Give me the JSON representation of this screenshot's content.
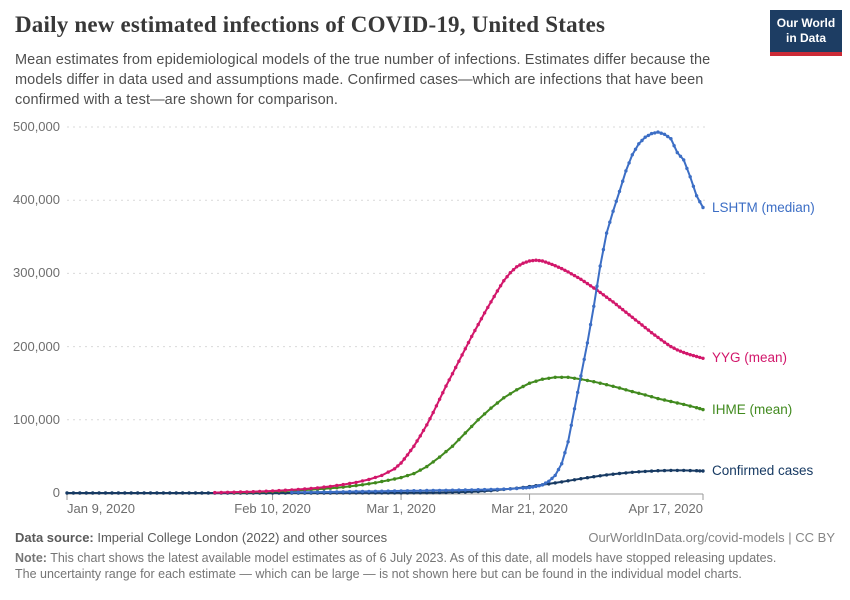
{
  "header": {
    "title": "Daily new estimated infections of COVID-19, United States",
    "subtitle": "Mean estimates from epidemiological models of the true number of infections. Estimates differ because the models differ in data used and assumptions made. Confirmed cases—which are infections that have been confirmed with a test—are shown for comparison.",
    "logo": {
      "line1": "Our World",
      "line2": "in Data"
    }
  },
  "colors": {
    "logo_bg": "#1d3d63",
    "logo_accent": "#cc2a36",
    "grid": "#d9d9d9",
    "axis": "#999999",
    "tick_text": "#6e6e6e"
  },
  "chart_data": {
    "type": "line",
    "title": "Daily new estimated infections of COVID-19, United States",
    "x_axis": {
      "unit": "date",
      "start": "Jan 9, 2020",
      "end": "Apr 17, 2020",
      "range_days": [
        0,
        99
      ],
      "ticks": [
        {
          "day": 0,
          "label": "Jan 9, 2020",
          "align": "left"
        },
        {
          "day": 32,
          "label": "Feb 10, 2020",
          "align": "center"
        },
        {
          "day": 52,
          "label": "Mar 1, 2020",
          "align": "center"
        },
        {
          "day": 72,
          "label": "Mar 21, 2020",
          "align": "center"
        },
        {
          "day": 99,
          "label": "Apr 17, 2020",
          "align": "right"
        }
      ]
    },
    "y_axis": {
      "min": 0,
      "max": 500000,
      "gridlines": true,
      "ticks": [
        {
          "value": 0,
          "label": "0"
        },
        {
          "value": 100000,
          "label": "100,000"
        },
        {
          "value": 200000,
          "label": "200,000"
        },
        {
          "value": 300000,
          "label": "300,000"
        },
        {
          "value": 400000,
          "label": "400,000"
        },
        {
          "value": 500000,
          "label": "500,000"
        }
      ]
    },
    "legend_position": "end-of-line-labels",
    "series": [
      {
        "id": "confirmed",
        "name": "Confirmed cases",
        "color": "#173a63",
        "points": [
          [
            0,
            0
          ],
          [
            2,
            0
          ],
          [
            4,
            0
          ],
          [
            6,
            0
          ],
          [
            8,
            0
          ],
          [
            10,
            0
          ],
          [
            12,
            0
          ],
          [
            14,
            0
          ],
          [
            16,
            0
          ],
          [
            18,
            0
          ],
          [
            20,
            0
          ],
          [
            22,
            0
          ],
          [
            24,
            0
          ],
          [
            26,
            0
          ],
          [
            28,
            0
          ],
          [
            30,
            0
          ],
          [
            32,
            0
          ],
          [
            34,
            0
          ],
          [
            36,
            50
          ],
          [
            38,
            50
          ],
          [
            40,
            50
          ],
          [
            42,
            80
          ],
          [
            44,
            100
          ],
          [
            46,
            100
          ],
          [
            48,
            100
          ],
          [
            50,
            120
          ],
          [
            52,
            150
          ],
          [
            54,
            250
          ],
          [
            56,
            400
          ],
          [
            58,
            600
          ],
          [
            60,
            900
          ],
          [
            62,
            1400
          ],
          [
            64,
            2100
          ],
          [
            66,
            3300
          ],
          [
            68,
            4900
          ],
          [
            70,
            6600
          ],
          [
            72,
            8800
          ],
          [
            74,
            11200
          ],
          [
            76,
            13800
          ],
          [
            78,
            16600
          ],
          [
            80,
            19500
          ],
          [
            82,
            22200
          ],
          [
            84,
            24700
          ],
          [
            86,
            26700
          ],
          [
            88,
            28300
          ],
          [
            90,
            29500
          ],
          [
            92,
            30400
          ],
          [
            94,
            30900
          ],
          [
            96,
            30900
          ],
          [
            98,
            30400
          ],
          [
            99,
            30000
          ]
        ]
      },
      {
        "id": "ihme",
        "name": "IHME (mean)",
        "color": "#418a1e",
        "points": [
          [
            26,
            700
          ],
          [
            28,
            1100
          ],
          [
            30,
            1500
          ],
          [
            32,
            2100
          ],
          [
            34,
            2800
          ],
          [
            36,
            3600
          ],
          [
            38,
            4600
          ],
          [
            40,
            5800
          ],
          [
            42,
            7200
          ],
          [
            44,
            9000
          ],
          [
            46,
            11200
          ],
          [
            48,
            14000
          ],
          [
            50,
            17300
          ],
          [
            52,
            21000
          ],
          [
            54,
            26500
          ],
          [
            56,
            36000
          ],
          [
            58,
            49000
          ],
          [
            60,
            64000
          ],
          [
            62,
            82000
          ],
          [
            64,
            100000
          ],
          [
            66,
            116000
          ],
          [
            68,
            130000
          ],
          [
            70,
            141000
          ],
          [
            72,
            150000
          ],
          [
            74,
            155500
          ],
          [
            76,
            158000
          ],
          [
            78,
            158000
          ],
          [
            80,
            155500
          ],
          [
            82,
            152000
          ],
          [
            84,
            148000
          ],
          [
            86,
            143500
          ],
          [
            88,
            138500
          ],
          [
            90,
            134000
          ],
          [
            92,
            129000
          ],
          [
            94,
            125000
          ],
          [
            96,
            121000
          ],
          [
            98,
            116500
          ],
          [
            99,
            114000
          ]
        ]
      },
      {
        "id": "yyg",
        "name": "YYG (mean)",
        "color": "#d2176b",
        "points": [
          [
            23,
            600
          ],
          [
            25,
            900
          ],
          [
            27,
            1300
          ],
          [
            29,
            1800
          ],
          [
            31,
            2500
          ],
          [
            33,
            3300
          ],
          [
            35,
            4300
          ],
          [
            37,
            5500
          ],
          [
            39,
            7000
          ],
          [
            41,
            9000
          ],
          [
            43,
            11500
          ],
          [
            45,
            14500
          ],
          [
            47,
            18500
          ],
          [
            49,
            24000
          ],
          [
            51,
            33000
          ],
          [
            52,
            41000
          ],
          [
            53,
            52000
          ],
          [
            54,
            64000
          ],
          [
            55,
            78000
          ],
          [
            56,
            93000
          ],
          [
            57,
            110000
          ],
          [
            58,
            128000
          ],
          [
            59,
            146000
          ],
          [
            60,
            163000
          ],
          [
            61,
            180000
          ],
          [
            62,
            197000
          ],
          [
            63,
            214000
          ],
          [
            64,
            230000
          ],
          [
            65,
            246000
          ],
          [
            66,
            261000
          ],
          [
            67,
            276000
          ],
          [
            68,
            290000
          ],
          [
            69,
            301000
          ],
          [
            70,
            309000
          ],
          [
            71,
            314000
          ],
          [
            72,
            317000
          ],
          [
            73,
            318000
          ],
          [
            74,
            317000
          ],
          [
            75,
            314000
          ],
          [
            76,
            310500
          ],
          [
            77,
            306500
          ],
          [
            78,
            302000
          ],
          [
            79,
            297000
          ],
          [
            80,
            292000
          ],
          [
            81,
            286000
          ],
          [
            82,
            280000
          ],
          [
            83,
            274000
          ],
          [
            84,
            267500
          ],
          [
            85,
            261000
          ],
          [
            86,
            254000
          ],
          [
            87,
            247000
          ],
          [
            88,
            240000
          ],
          [
            89,
            233000
          ],
          [
            90,
            226000
          ],
          [
            91,
            219000
          ],
          [
            92,
            212500
          ],
          [
            93,
            206000
          ],
          [
            94,
            200000
          ],
          [
            95,
            195500
          ],
          [
            96,
            192000
          ],
          [
            97,
            189000
          ],
          [
            98,
            186500
          ],
          [
            99,
            184000
          ]
        ]
      },
      {
        "id": "lshtm",
        "name": "LSHTM (median)",
        "color": "#3c6ec5",
        "points": [
          [
            35,
            800
          ],
          [
            37,
            1000
          ],
          [
            39,
            1200
          ],
          [
            41,
            1400
          ],
          [
            43,
            1700
          ],
          [
            45,
            2000
          ],
          [
            47,
            2200
          ],
          [
            49,
            2500
          ],
          [
            51,
            2800
          ],
          [
            53,
            3000
          ],
          [
            55,
            3200
          ],
          [
            57,
            3500
          ],
          [
            59,
            3700
          ],
          [
            61,
            4000
          ],
          [
            63,
            4300
          ],
          [
            65,
            4600
          ],
          [
            67,
            5000
          ],
          [
            69,
            5600
          ],
          [
            71,
            6800
          ],
          [
            72,
            7500
          ],
          [
            73,
            9000
          ],
          [
            74,
            11000
          ],
          [
            75,
            16000
          ],
          [
            76,
            24000
          ],
          [
            77,
            40000
          ],
          [
            78,
            70000
          ],
          [
            79,
            115000
          ],
          [
            80,
            160000
          ],
          [
            81,
            205000
          ],
          [
            82,
            255000
          ],
          [
            83,
            310000
          ],
          [
            84,
            355000
          ],
          [
            85,
            385000
          ],
          [
            86,
            412000
          ],
          [
            87,
            440000
          ],
          [
            88,
            462000
          ],
          [
            89,
            477000
          ],
          [
            90,
            486000
          ],
          [
            91,
            491000
          ],
          [
            92,
            493000
          ],
          [
            93,
            490000
          ],
          [
            94,
            484000
          ],
          [
            95,
            465000
          ],
          [
            96,
            455000
          ],
          [
            97,
            432000
          ],
          [
            98,
            406000
          ],
          [
            99,
            390000
          ]
        ]
      }
    ]
  },
  "footer": {
    "source_label": "Data source:",
    "source_text": " Imperial College London (2022) and other sources",
    "license": "OurWorldInData.org/covid-models | CC BY",
    "note_label": "Note:",
    "note_line1": " This chart shows the latest available model estimates as of 6 July 2023. As of this date, all models have stopped releasing updates.",
    "note_line2": "The uncertainty range for each estimate — which can be large — is not shown here but can be found in the individual model charts."
  }
}
